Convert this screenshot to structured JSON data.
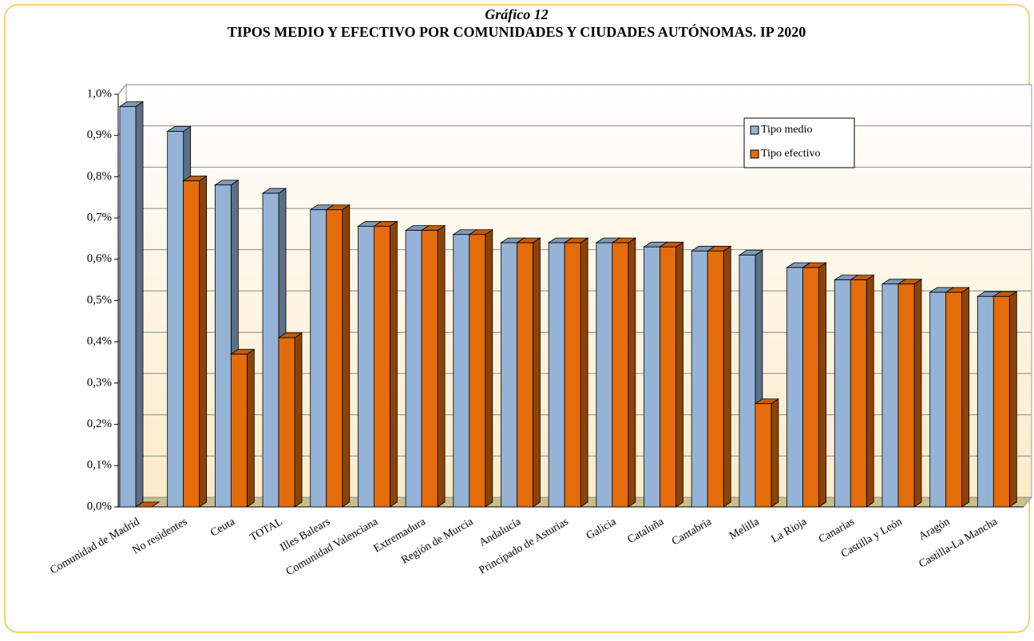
{
  "chart_data": {
    "type": "bar3d",
    "title": "Gráfico 12",
    "subtitle": "TIPOS  MEDIO Y EFECTIVO POR COMUNIDADES Y CIUDADES AUTÓNOMAS. IP 2020",
    "categories": [
      "Comunidad de Madrid",
      "No residentes",
      "Ceuta",
      "TOTAL",
      "Illes Balears",
      "Comunidad Valenciana",
      "Extremadura",
      "Región de Murcia",
      "Andalucía",
      "Principado de Asturias",
      "Galicia",
      "Cataluña",
      "Cantabria",
      "Melilla",
      "La Rioja",
      "Canarias",
      "Castilla y León",
      "Aragón",
      "Castilla-La Mancha"
    ],
    "series": [
      {
        "name": "Tipo medio",
        "color": "#95b3d7",
        "values": [
          0.97,
          0.91,
          0.78,
          0.76,
          0.72,
          0.68,
          0.67,
          0.66,
          0.64,
          0.64,
          0.64,
          0.63,
          0.62,
          0.61,
          0.58,
          0.55,
          0.54,
          0.52,
          0.51
        ]
      },
      {
        "name": "Tipo efectivo",
        "color": "#e46c0a",
        "values": [
          0,
          0.79,
          0.37,
          0.41,
          0.72,
          0.68,
          0.67,
          0.66,
          0.64,
          0.64,
          0.64,
          0.63,
          0.62,
          0.25,
          0.58,
          0.55,
          0.54,
          0.52,
          0.51
        ]
      }
    ],
    "ylim": [
      0,
      1
    ],
    "yticks": [
      {
        "value": 0,
        "label": "0,0%"
      },
      {
        "value": 0.1,
        "label": "0,1%"
      },
      {
        "value": 0.2,
        "label": "0,2%"
      },
      {
        "value": 0.3,
        "label": "0,3%"
      },
      {
        "value": 0.4,
        "label": "0,4%"
      },
      {
        "value": 0.5,
        "label": "0,5%"
      },
      {
        "value": 0.6,
        "label": "0,6%"
      },
      {
        "value": 0.7,
        "label": "0,7%"
      },
      {
        "value": 0.8,
        "label": "0,8%"
      },
      {
        "value": 0.9,
        "label": "0,9%"
      },
      {
        "value": 1,
        "label": "1,0%"
      }
    ],
    "grid": true,
    "legend": "upper right"
  }
}
